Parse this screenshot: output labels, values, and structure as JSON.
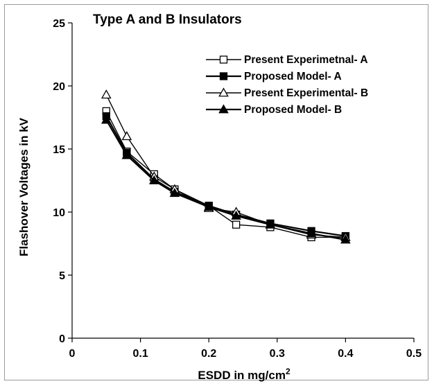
{
  "chart_data": {
    "type": "line",
    "title": "Type A and B Insulators",
    "xlabel": "ESDD in mg/cm",
    "xlabel_superscript": "2",
    "ylabel": "Flashover Voltages in kV",
    "xlim": [
      0,
      0.5
    ],
    "ylim": [
      0,
      25
    ],
    "x_ticks": [
      "0",
      "0.1",
      "0.2",
      "0.3",
      "0.4",
      "0.5"
    ],
    "y_ticks": [
      "0",
      "5",
      "10",
      "15",
      "20",
      "25"
    ],
    "grid": false,
    "legend_position": "top-right",
    "series": [
      {
        "name": "Present Experimetnal- A",
        "marker": "square",
        "filled": false,
        "x": [
          0.05,
          0.08,
          0.12,
          0.15,
          0.2,
          0.24,
          0.29,
          0.35,
          0.4
        ],
        "values": [
          18.0,
          14.8,
          13.0,
          11.8,
          10.5,
          9.0,
          8.8,
          8.0,
          8.0
        ]
      },
      {
        "name": "Proposed Model- A",
        "marker": "square",
        "filled": true,
        "x": [
          0.05,
          0.08,
          0.12,
          0.15,
          0.2,
          0.24,
          0.29,
          0.35,
          0.4
        ],
        "values": [
          17.6,
          14.7,
          12.6,
          11.6,
          10.5,
          9.8,
          9.1,
          8.5,
          8.1
        ]
      },
      {
        "name": "Present Experimental- B",
        "marker": "triangle",
        "filled": false,
        "x": [
          0.05,
          0.08,
          0.12,
          0.15,
          0.2,
          0.24,
          0.29,
          0.35,
          0.4
        ],
        "values": [
          19.3,
          16.0,
          12.8,
          11.8,
          10.3,
          10.0,
          9.0,
          8.2,
          8.0
        ]
      },
      {
        "name": "Proposed Model- B",
        "marker": "triangle",
        "filled": true,
        "x": [
          0.05,
          0.08,
          0.12,
          0.15,
          0.2,
          0.24,
          0.29,
          0.35,
          0.4
        ],
        "values": [
          17.3,
          14.5,
          12.5,
          11.5,
          10.4,
          9.7,
          9.0,
          8.3,
          7.8
        ]
      }
    ],
    "colors": {
      "line": "#000000",
      "axis": "#000000"
    }
  }
}
